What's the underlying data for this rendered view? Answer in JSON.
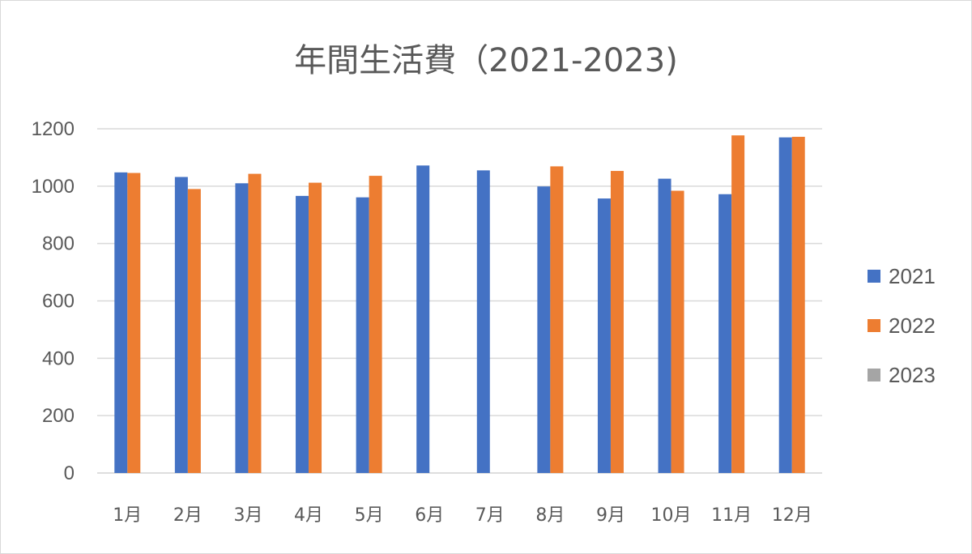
{
  "chart_data": {
    "type": "bar",
    "title": "年間生活費（2021-2023)",
    "xlabel": "",
    "ylabel": "",
    "categories": [
      "1月",
      "2月",
      "3月",
      "4月",
      "5月",
      "6月",
      "7月",
      "8月",
      "9月",
      "10月",
      "11月",
      "12月"
    ],
    "ylim": [
      0,
      1200
    ],
    "yticks": [
      0,
      200,
      400,
      600,
      800,
      1000,
      1200
    ],
    "grid": true,
    "legend_position": "right",
    "series": [
      {
        "name": "2021",
        "color": "#4472C4",
        "values": [
          1048,
          1032,
          1010,
          966,
          961,
          1072,
          1055,
          999,
          957,
          1026,
          972,
          1170
        ]
      },
      {
        "name": "2022",
        "color": "#ED7D31",
        "values": [
          1046,
          990,
          1043,
          1012,
          1036,
          null,
          null,
          1069,
          1053,
          984,
          1177,
          1172
        ]
      },
      {
        "name": "2023",
        "color": "#A5A5A5",
        "values": [
          null,
          null,
          null,
          null,
          null,
          null,
          null,
          null,
          null,
          null,
          null,
          null
        ]
      }
    ]
  }
}
